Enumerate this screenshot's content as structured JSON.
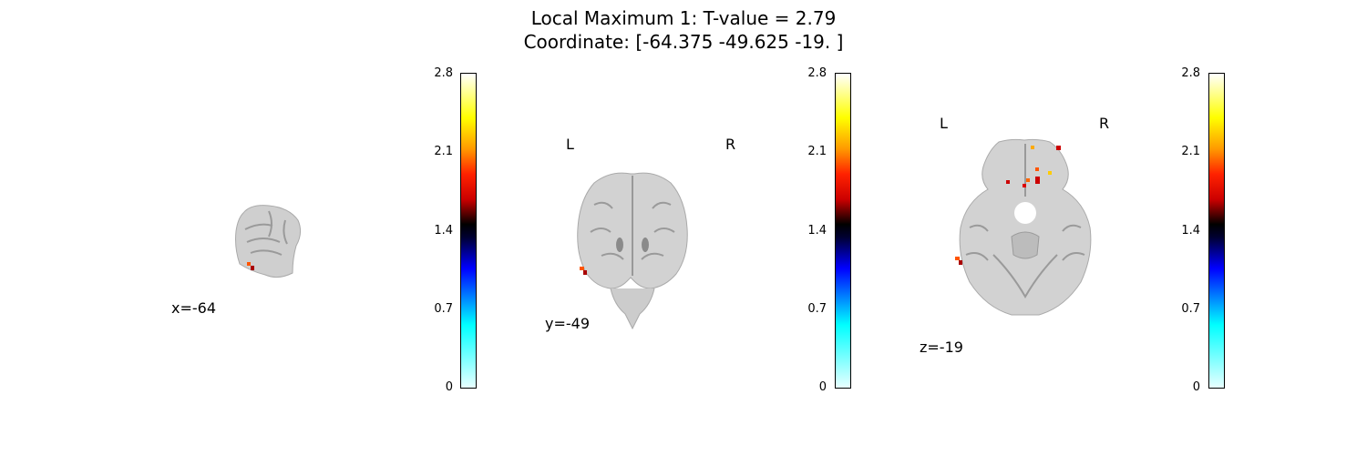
{
  "title": {
    "line1": "Local Maximum 1: T-value = 2.79",
    "line2": "Coordinate: [-64.375 -49.625 -19.   ]"
  },
  "panels": [
    {
      "coord_label": "x=-64",
      "left_label": "",
      "right_label": ""
    },
    {
      "coord_label": "y=-49",
      "left_label": "L",
      "right_label": "R"
    },
    {
      "coord_label": "z=-19",
      "left_label": "L",
      "right_label": "R"
    }
  ],
  "colorbar": {
    "ticks": [
      "2.8",
      "2.1",
      "1.4",
      "0.7",
      "0"
    ],
    "colormap": "cold_hot",
    "range": [
      0,
      2.8
    ]
  },
  "colors": {
    "brain_gray": "#cfcfcf",
    "activation": "#ff3300"
  }
}
